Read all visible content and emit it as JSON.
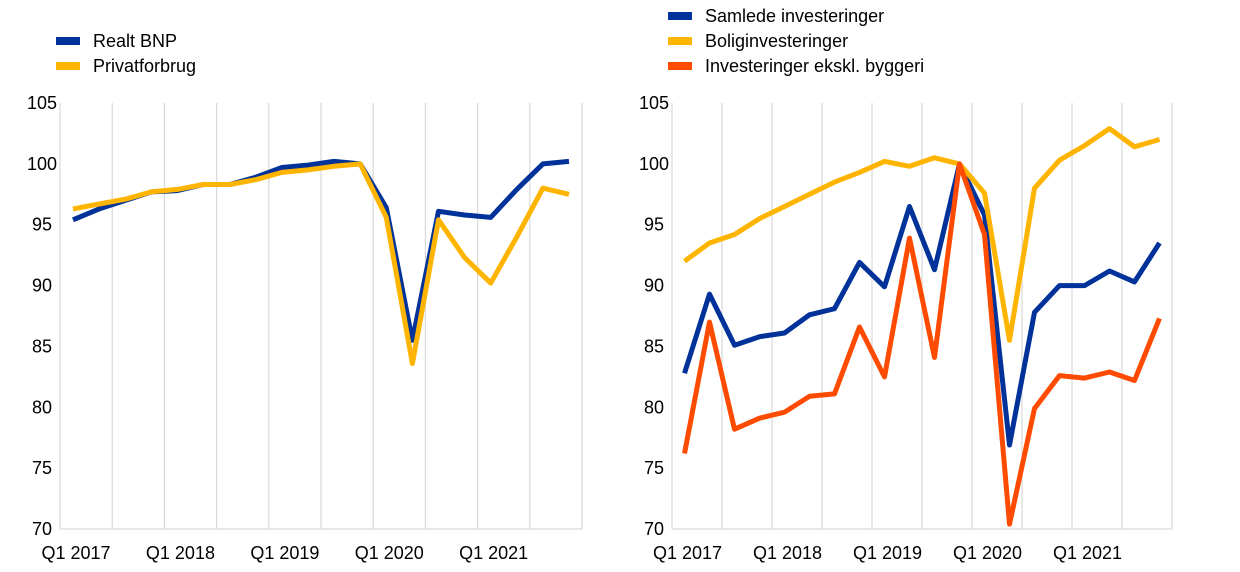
{
  "chart_data": [
    {
      "type": "line",
      "title": "",
      "xlabel": "",
      "ylabel": "",
      "ylim": [
        70,
        105
      ],
      "yticks": [
        "105",
        "100",
        "95",
        "90",
        "85",
        "80",
        "75",
        "70"
      ],
      "xtick_labels": [
        "Q1 2017",
        "Q1 2018",
        "Q1 2019",
        "Q1 2020",
        "Q1 2021"
      ],
      "grid": "vertical",
      "legend_position": "top-left",
      "x": [
        "Q1 2017",
        "Q2 2017",
        "Q3 2017",
        "Q4 2017",
        "Q1 2018",
        "Q2 2018",
        "Q3 2018",
        "Q4 2018",
        "Q1 2019",
        "Q2 2019",
        "Q3 2019",
        "Q4 2019",
        "Q1 2020",
        "Q2 2020",
        "Q3 2020",
        "Q4 2020",
        "Q1 2021",
        "Q2 2021",
        "Q3 2021",
        "Q4 2021"
      ],
      "series": [
        {
          "name": "Realt BNP",
          "color": "#003299",
          "values": [
            95.4,
            96.3,
            97.0,
            97.7,
            97.8,
            98.3,
            98.3,
            98.9,
            99.7,
            99.9,
            100.2,
            100.0,
            96.4,
            85.5,
            96.1,
            95.8,
            95.6,
            97.9,
            100.0,
            100.2
          ]
        },
        {
          "name": "Privatforbrug",
          "color": "#FFB400",
          "values": [
            96.3,
            96.7,
            97.1,
            97.7,
            97.9,
            98.3,
            98.3,
            98.7,
            99.3,
            99.5,
            99.8,
            100.0,
            95.6,
            83.6,
            95.4,
            92.3,
            90.2,
            94.0,
            98.0,
            97.5
          ]
        }
      ]
    },
    {
      "type": "line",
      "title": "",
      "xlabel": "",
      "ylabel": "",
      "ylim": [
        70,
        105
      ],
      "yticks": [
        "105",
        "100",
        "95",
        "90",
        "85",
        "80",
        "75",
        "70"
      ],
      "xtick_labels": [
        "Q1 2017",
        "Q1 2018",
        "Q1 2019",
        "Q1 2020",
        "Q1 2021"
      ],
      "grid": "vertical",
      "legend_position": "top-left",
      "x": [
        "Q1 2017",
        "Q2 2017",
        "Q3 2017",
        "Q4 2017",
        "Q1 2018",
        "Q2 2018",
        "Q3 2018",
        "Q4 2018",
        "Q1 2019",
        "Q2 2019",
        "Q3 2019",
        "Q4 2019",
        "Q1 2020",
        "Q2 2020",
        "Q3 2020",
        "Q4 2020",
        "Q1 2021",
        "Q2 2021",
        "Q3 2021",
        "Q4 2021"
      ],
      "series": [
        {
          "name": "Samlede investeringer",
          "color": "#003299",
          "values": [
            82.8,
            89.3,
            85.1,
            85.8,
            86.1,
            87.6,
            88.1,
            91.9,
            89.9,
            96.5,
            91.3,
            100.0,
            95.8,
            76.9,
            87.8,
            90.0,
            90.0,
            91.2,
            90.3,
            93.5
          ]
        },
        {
          "name": "Boliginvesteringer",
          "color": "#FFB400",
          "values": [
            92.0,
            93.5,
            94.2,
            95.5,
            96.5,
            97.5,
            98.5,
            99.3,
            100.2,
            99.8,
            100.5,
            100.0,
            97.6,
            85.5,
            98.0,
            100.3,
            101.5,
            102.9,
            101.4,
            102.0
          ]
        },
        {
          "name": "Investeringer ekskl. byggeri",
          "color": "#FF4B00",
          "values": [
            76.2,
            87.0,
            78.2,
            79.1,
            79.6,
            80.9,
            81.1,
            86.6,
            82.5,
            93.9,
            84.1,
            100.0,
            94.2,
            70.4,
            79.9,
            82.6,
            82.4,
            82.9,
            82.2,
            87.3
          ]
        }
      ]
    }
  ]
}
